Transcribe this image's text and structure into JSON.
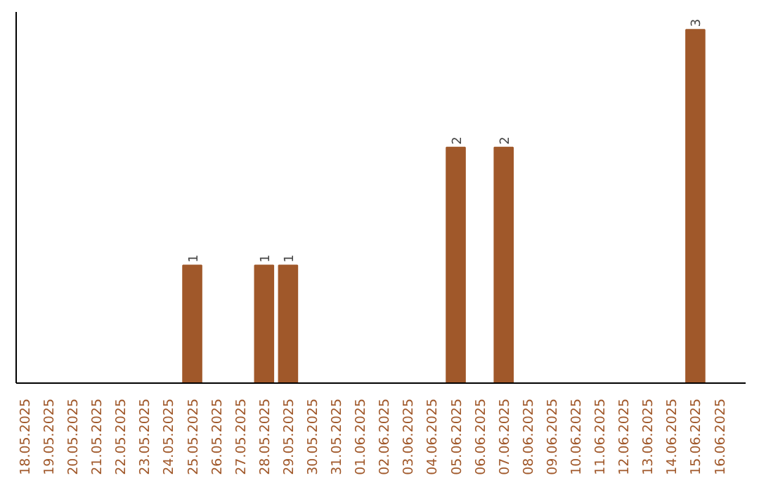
{
  "chart_data": {
    "type": "bar",
    "categories": [
      "18.05.2025",
      "19.05.2025",
      "20.05.2025",
      "21.05.2025",
      "22.05.2025",
      "23.05.2025",
      "24.05.2025",
      "25.05.2025",
      "26.05.2025",
      "27.05.2025",
      "28.05.2025",
      "29.05.2025",
      "30.05.2025",
      "31.05.2025",
      "01.06.2025",
      "02.06.2025",
      "03.06.2025",
      "04.06.2025",
      "05.06.2025",
      "06.06.2025",
      "07.06.2025",
      "08.06.2025",
      "09.06.2025",
      "10.06.2025",
      "11.06.2025",
      "12.06.2025",
      "13.06.2025",
      "14.06.2025",
      "15.06.2025",
      "16.06.2025"
    ],
    "values": [
      0,
      0,
      0,
      0,
      0,
      0,
      0,
      1,
      0,
      0,
      1,
      1,
      0,
      0,
      0,
      0,
      0,
      0,
      2,
      0,
      2,
      0,
      0,
      0,
      0,
      0,
      0,
      0,
      3,
      0
    ],
    "value_labels": [
      null,
      null,
      null,
      null,
      null,
      null,
      null,
      "1",
      null,
      null,
      "1",
      "1",
      null,
      null,
      null,
      null,
      null,
      null,
      "2",
      null,
      "2",
      null,
      null,
      null,
      null,
      null,
      null,
      null,
      "3",
      null
    ],
    "color": "#a0582a",
    "ylim": [
      0,
      3.15
    ],
    "tick_labels": "x",
    "grid": false
  }
}
